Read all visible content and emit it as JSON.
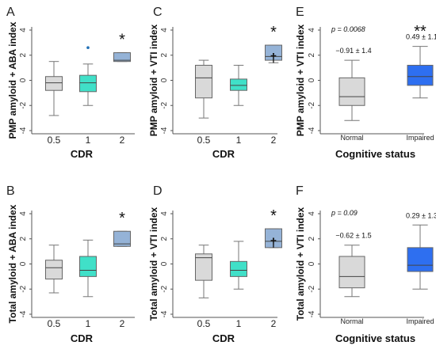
{
  "figure": {
    "tick_labels_y": [
      "4",
      "2",
      "0",
      "-2",
      "-4"
    ]
  },
  "chart_data": [
    {
      "type": "box",
      "panel_label": "A",
      "ylabel": "PMP amyloid + ABA index",
      "xlabel": "CDR",
      "categories": [
        "0.5",
        "1",
        "2"
      ],
      "ylim": [
        -4,
        4
      ],
      "yticks": [
        4,
        2,
        0,
        -2,
        -4
      ],
      "boxes": [
        {
          "category": "0.5",
          "whisker_low": -2.8,
          "q1": -0.8,
          "median": -0.2,
          "q3": 0.3,
          "whisker_high": 1.5,
          "color": "#d9d9d9"
        },
        {
          "category": "1",
          "whisker_low": -2.0,
          "q1": -0.9,
          "median": -0.2,
          "q3": 0.4,
          "whisker_high": 1.3,
          "color": "#40e0c8"
        },
        {
          "category": "2",
          "whisker_low": 1.5,
          "q1": 1.5,
          "median": 1.6,
          "q3": 2.2,
          "whisker_high": 2.2,
          "color": "#95b3d7"
        }
      ],
      "outliers": [
        {
          "category": "1",
          "value": 2.6,
          "color": "#1f6fb5"
        }
      ],
      "annotations": [
        {
          "category": "2",
          "text": "*"
        }
      ]
    },
    {
      "type": "box",
      "panel_label": "B",
      "ylabel": "Total amyloid + ABA index",
      "xlabel": "CDR",
      "categories": [
        "0.5",
        "1",
        "2"
      ],
      "ylim": [
        -4,
        4
      ],
      "yticks": [
        4,
        2,
        0,
        -2,
        -4
      ],
      "boxes": [
        {
          "category": "0.5",
          "whisker_low": -2.3,
          "q1": -1.2,
          "median": -0.3,
          "q3": 0.3,
          "whisker_high": 1.5,
          "color": "#d9d9d9"
        },
        {
          "category": "1",
          "whisker_low": -2.6,
          "q1": -1.0,
          "median": -0.5,
          "q3": 0.6,
          "whisker_high": 1.9,
          "color": "#40e0c8"
        },
        {
          "category": "2",
          "whisker_low": 1.4,
          "q1": 1.4,
          "median": 1.6,
          "q3": 2.6,
          "whisker_high": 2.6,
          "color": "#95b3d7"
        }
      ],
      "outliers": [],
      "annotations": [
        {
          "category": "2",
          "text": "*"
        }
      ]
    },
    {
      "type": "box",
      "panel_label": "C",
      "ylabel": "PMP amyloid + VTI index",
      "xlabel": "CDR",
      "categories": [
        "0.5",
        "1",
        "2"
      ],
      "ylim": [
        -4,
        4
      ],
      "yticks": [
        4,
        2,
        0,
        -2,
        -4
      ],
      "boxes": [
        {
          "category": "0.5",
          "whisker_low": -3.0,
          "q1": -1.4,
          "median": 0.2,
          "q3": 1.2,
          "whisker_high": 1.6,
          "color": "#d9d9d9"
        },
        {
          "category": "1",
          "whisker_low": -2.0,
          "q1": -0.8,
          "median": -0.4,
          "q3": 0.1,
          "whisker_high": 1.2,
          "color": "#40e0c8"
        },
        {
          "category": "2",
          "whisker_low": 1.4,
          "q1": 1.6,
          "median": 1.9,
          "q3": 2.8,
          "whisker_high": 2.8,
          "color": "#95b3d7"
        }
      ],
      "outliers": [],
      "annotations": [
        {
          "category": "2",
          "text": "*"
        },
        {
          "category": "2",
          "text": "†"
        }
      ]
    },
    {
      "type": "box",
      "panel_label": "D",
      "ylabel": "Total amyloid + VTI index",
      "xlabel": "CDR",
      "categories": [
        "0.5",
        "1",
        "2"
      ],
      "ylim": [
        -4,
        4
      ],
      "yticks": [
        4,
        2,
        0,
        -2,
        -4
      ],
      "boxes": [
        {
          "category": "0.5",
          "whisker_low": -2.7,
          "q1": -1.3,
          "median": 0.5,
          "q3": 0.8,
          "whisker_high": 1.5,
          "color": "#d9d9d9"
        },
        {
          "category": "1",
          "whisker_low": -2.0,
          "q1": -1.0,
          "median": -0.5,
          "q3": 0.2,
          "whisker_high": 1.8,
          "color": "#40e0c8"
        },
        {
          "category": "2",
          "whisker_low": 1.3,
          "q1": 1.3,
          "median": 1.8,
          "q3": 2.8,
          "whisker_high": 2.8,
          "color": "#95b3d7"
        }
      ],
      "outliers": [],
      "annotations": [
        {
          "category": "2",
          "text": "*"
        },
        {
          "category": "2",
          "text": "†"
        }
      ]
    },
    {
      "type": "box",
      "panel_label": "E",
      "ylabel": "PMP amyloid + VTI index",
      "xlabel": "Cognitive status",
      "categories": [
        "Normal",
        "Impaired"
      ],
      "ylim": [
        -4,
        4
      ],
      "yticks": [
        4,
        2,
        0,
        -2,
        -4
      ],
      "boxes": [
        {
          "category": "Normal",
          "whisker_low": -3.2,
          "q1": -2.0,
          "median": -1.3,
          "q3": 0.2,
          "whisker_high": 1.6,
          "color": "#d9d9d9"
        },
        {
          "category": "Impaired",
          "whisker_low": -1.4,
          "q1": -0.4,
          "median": 0.3,
          "q3": 1.2,
          "whisker_high": 2.7,
          "color": "#2e6ff0"
        }
      ],
      "outliers": [],
      "annotations": [
        {
          "category": "Normal",
          "text": "p = 0.0068",
          "kind": "pvalue"
        },
        {
          "category": "Normal",
          "text": "−0.91 ± 1.4",
          "kind": "mean_sd"
        },
        {
          "category": "Impaired",
          "text": "**",
          "kind": "significance"
        },
        {
          "category": "Impaired",
          "text": "0.49 ± 1.1",
          "kind": "mean_sd"
        }
      ]
    },
    {
      "type": "box",
      "panel_label": "F",
      "ylabel": "Total amyloid + VTI index",
      "xlabel": "Cognitive status",
      "categories": [
        "Normal",
        "Impaired"
      ],
      "ylim": [
        -4,
        4
      ],
      "yticks": [
        4,
        2,
        0,
        -2,
        -4
      ],
      "boxes": [
        {
          "category": "Normal",
          "whisker_low": -2.6,
          "q1": -1.9,
          "median": -1.0,
          "q3": 0.6,
          "whisker_high": 1.5,
          "color": "#d9d9d9"
        },
        {
          "category": "Impaired",
          "whisker_low": -2.0,
          "q1": -0.6,
          "median": -0.1,
          "q3": 1.3,
          "whisker_high": 3.1,
          "color": "#2e6ff0"
        }
      ],
      "outliers": [],
      "annotations": [
        {
          "category": "Normal",
          "text": "p = 0.09",
          "kind": "pvalue"
        },
        {
          "category": "Normal",
          "text": "−0.62 ± 1.5",
          "kind": "mean_sd"
        },
        {
          "category": "Impaired",
          "text": "0.29 ± 1.3",
          "kind": "mean_sd"
        }
      ]
    }
  ]
}
